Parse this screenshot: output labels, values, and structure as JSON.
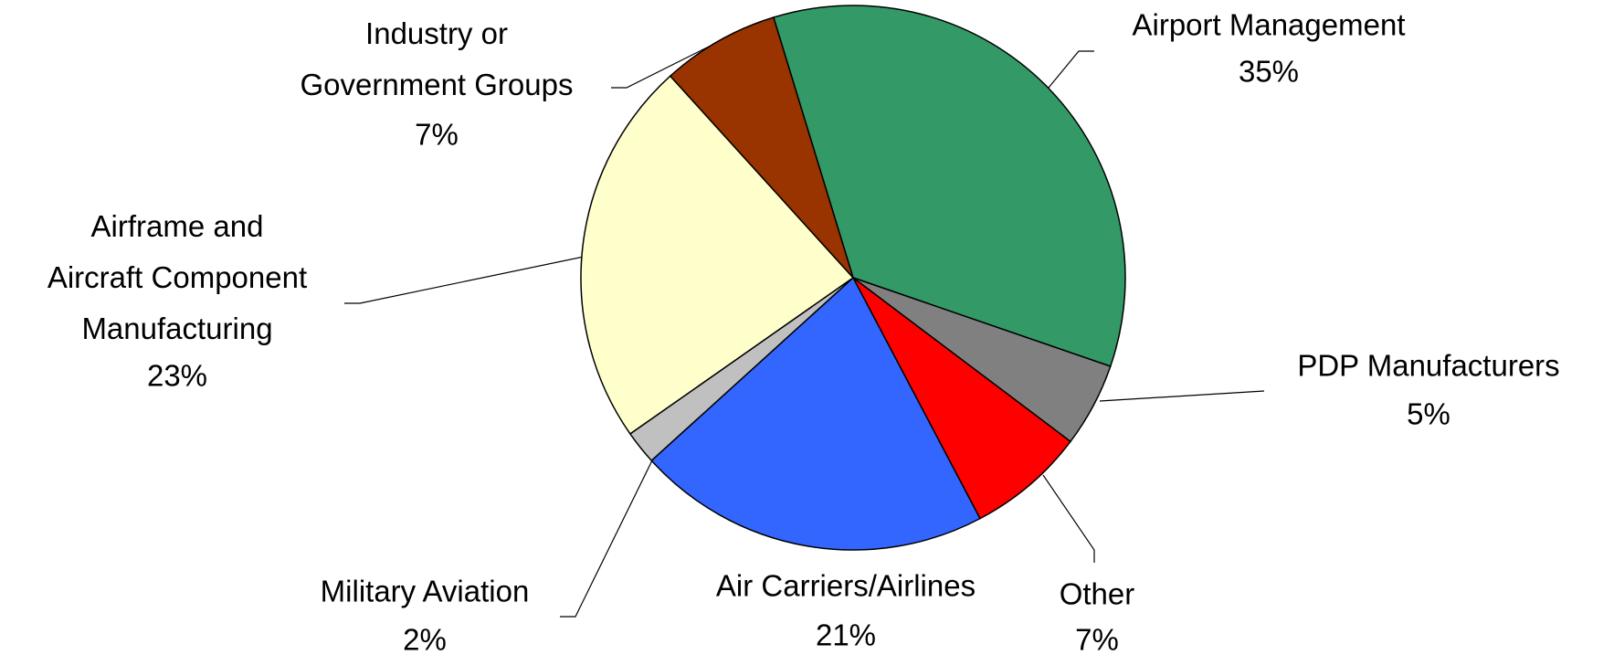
{
  "chart_data": {
    "type": "pie",
    "categories": [
      "Airport Management",
      "PDP Manufacturers",
      "Other",
      "Air Carriers/Airlines",
      "Military Aviation",
      "Airframe and\nAircraft Component\nManufacturing",
      "Industry or\nGovernment Groups"
    ],
    "values": [
      35,
      5,
      7,
      21,
      2,
      23,
      7
    ],
    "value_labels": [
      "35%",
      "5%",
      "7%",
      "21%",
      "2%",
      "23%",
      "7%"
    ],
    "colors": [
      "#339966",
      "#808080",
      "#ff0000",
      "#3366ff",
      "#c0c0c0",
      "#ffffcc",
      "#993300"
    ]
  }
}
